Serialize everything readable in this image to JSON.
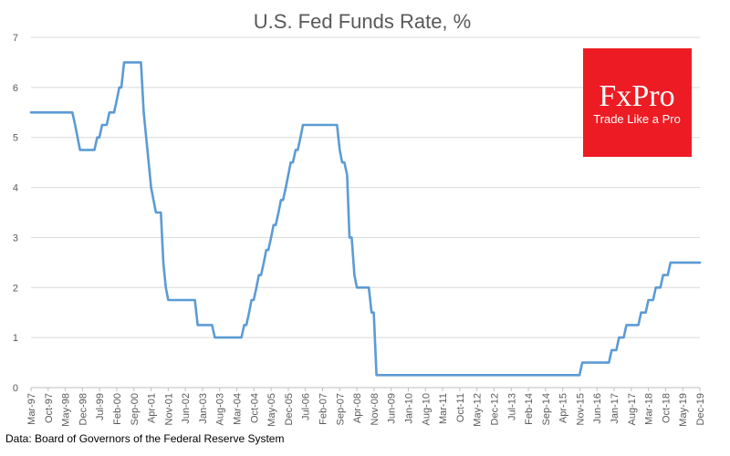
{
  "chart_data": {
    "type": "line",
    "title": "U.S. Fed Funds Rate, %",
    "xlabel": "",
    "ylabel": "",
    "ylim": [
      0,
      7
    ],
    "y_ticks": [
      "0",
      "1",
      "2",
      "3",
      "4",
      "5",
      "6",
      "7"
    ],
    "x_tick_labels": [
      "Mar-97",
      "Oct-97",
      "May-98",
      "Dec-98",
      "Jul-99",
      "Feb-00",
      "Sep-00",
      "Apr-01",
      "Nov-01",
      "Jun-02",
      "Jan-03",
      "Aug-03",
      "Mar-04",
      "Oct-04",
      "May-05",
      "Dec-05",
      "Jul-06",
      "Feb-07",
      "Sep-07",
      "Apr-08",
      "Nov-08",
      "Jun-09",
      "Jan-10",
      "Aug-10",
      "Mar-11",
      "Oct-11",
      "May-12",
      "Dec-12",
      "Jul-13",
      "Feb-14",
      "Sep-14",
      "Apr-15",
      "Nov-15",
      "Jun-16",
      "Jan-17",
      "Aug-17",
      "Mar-18",
      "Oct-18",
      "May-19",
      "Dec-19"
    ],
    "grid": true,
    "series_color": "#5b9bd5",
    "series": [
      {
        "x": [
          "Mar-97",
          "Sep-98",
          "Oct-98",
          "Nov-98",
          "Jun-99",
          "Aug-99",
          "Nov-99",
          "Feb-00",
          "Mar-00",
          "May-00",
          "Jan-01",
          "Feb-01",
          "Mar-01",
          "Apr-01",
          "May-01",
          "Jun-01",
          "Aug-01",
          "Sep-01",
          "Oct-01",
          "Nov-01",
          "Dec-01",
          "Nov-02",
          "Jun-03",
          "Jun-04",
          "Aug-04",
          "Sep-04",
          "Nov-04",
          "Dec-04",
          "Feb-05",
          "Mar-05",
          "May-05",
          "Jun-05",
          "Aug-05",
          "Sep-05",
          "Nov-05",
          "Dec-05",
          "Jan-06",
          "Mar-06",
          "May-06",
          "Jun-06",
          "Sep-07",
          "Oct-07",
          "Dec-07",
          "Jan-08",
          "Mar-08",
          "Apr-08",
          "Oct-08",
          "Dec-08",
          "Dec-15",
          "Dec-16",
          "Mar-17",
          "Jun-17",
          "Dec-17",
          "Mar-18",
          "Jun-18",
          "Sep-18",
          "Dec-18",
          "Jul-19",
          "Dec-19"
        ],
        "values": [
          5.5,
          5.25,
          5.0,
          4.75,
          5.0,
          5.25,
          5.5,
          5.75,
          6.0,
          6.5,
          5.5,
          5.0,
          4.5,
          4.0,
          3.75,
          3.5,
          3.5,
          2.5,
          2.0,
          1.75,
          1.75,
          1.25,
          1.0,
          1.25,
          1.5,
          1.75,
          2.0,
          2.25,
          2.5,
          2.75,
          3.0,
          3.25,
          3.5,
          3.75,
          4.0,
          4.25,
          4.5,
          4.75,
          5.0,
          5.25,
          4.75,
          4.5,
          4.25,
          3.0,
          2.25,
          2.0,
          1.5,
          0.25,
          0.5,
          0.75,
          1.0,
          1.25,
          1.5,
          1.75,
          2.0,
          2.25,
          2.5,
          2.5,
          2.5
        ]
      }
    ],
    "source": "Data: Board of Governors of the Federal Reserve System"
  },
  "logo": {
    "brand": "FxPro",
    "tagline": "Trade Like a Pro",
    "background_color": "#ed1c24"
  }
}
